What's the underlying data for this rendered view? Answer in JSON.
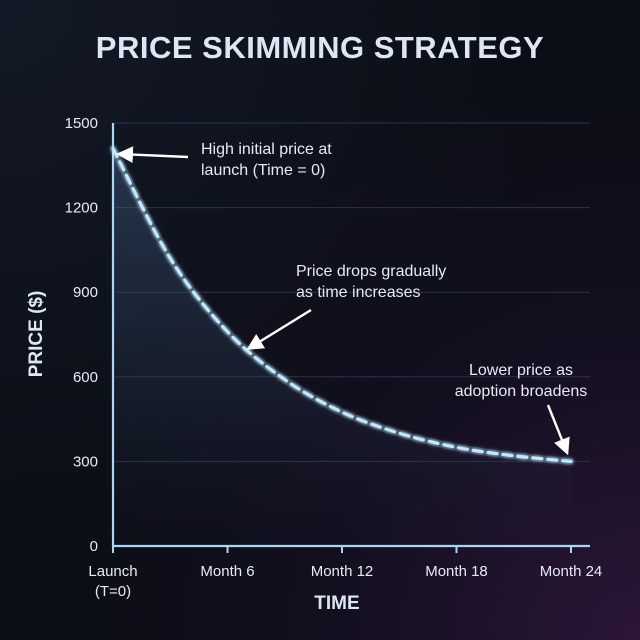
{
  "chart_data": {
    "type": "line",
    "title": "PRICE SKIMMING STRATEGY",
    "xlabel": "TIME",
    "ylabel": "PRICE ($)",
    "x": [
      0,
      3,
      6,
      9,
      12,
      15,
      18,
      21,
      24
    ],
    "x_ticks": [
      {
        "value": 0,
        "label": "Launch",
        "sublabel": "(T=0)"
      },
      {
        "value": 6,
        "label": "Month 6",
        "sublabel": ""
      },
      {
        "value": 12,
        "label": "Month 12",
        "sublabel": ""
      },
      {
        "value": 18,
        "label": "Month 18",
        "sublabel": ""
      },
      {
        "value": 24,
        "label": "Month 24",
        "sublabel": ""
      }
    ],
    "y_ticks": [
      0,
      300,
      600,
      900,
      1200,
      1500
    ],
    "xlim": [
      0,
      24
    ],
    "ylim": [
      0,
      1500
    ],
    "grid": true,
    "series": [
      {
        "values": [
          1410,
          1020,
          760,
          590,
          475,
          400,
          350,
          320,
          300
        ],
        "style": "dashed",
        "color": "#bfe9ff",
        "area_fill": true
      }
    ],
    "annotations": [
      {
        "id": "launch",
        "lines": [
          "High initial price at",
          "launch (Time = 0)"
        ],
        "point": [
          0.3,
          1390
        ]
      },
      {
        "id": "drops",
        "lines": [
          "Price drops gradually",
          "as time increases"
        ],
        "point": [
          7.1,
          700
        ]
      },
      {
        "id": "lower",
        "lines": [
          "Lower price as",
          "adoption broadens"
        ],
        "point": [
          23.8,
          330
        ]
      }
    ],
    "colors": {
      "background": "#0b0e16",
      "axis": "#a9d6f2",
      "grid": "#2a3346",
      "line": "#bfe9ff",
      "text": "#e6ebf3",
      "title": "#dde6f2"
    }
  }
}
